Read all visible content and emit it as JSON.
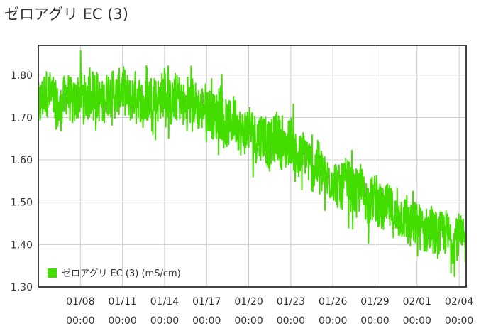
{
  "page_title": "ゼロアグリ EC (3)",
  "colors": {
    "series": "#44dd00",
    "grid": "#cccccc",
    "frame": "#444444",
    "text": "#333333"
  },
  "chart_data": {
    "type": "line",
    "title": "ゼロアグリ EC (3)",
    "unit": "mS/cm",
    "ylim": [
      1.3,
      1.87
    ],
    "y_ticks": [
      "1.30",
      "1.40",
      "1.50",
      "1.60",
      "1.70",
      "1.80"
    ],
    "x_ticks": [
      {
        "date": "01/08",
        "time": "00:00"
      },
      {
        "date": "01/11",
        "time": "00:00"
      },
      {
        "date": "01/14",
        "time": "00:00"
      },
      {
        "date": "01/17",
        "time": "00:00"
      },
      {
        "date": "01/20",
        "time": "00:00"
      },
      {
        "date": "01/23",
        "time": "00:00"
      },
      {
        "date": "01/26",
        "time": "00:00"
      },
      {
        "date": "01/29",
        "time": "00:00"
      },
      {
        "date": "02/01",
        "time": "00:00"
      },
      {
        "date": "02/04",
        "time": "00:00"
      }
    ],
    "x_range": [
      "01/05 00:00",
      "02/04 12:00"
    ],
    "grid": true,
    "legend": {
      "placement": "bottom-left",
      "label": "ゼロアグリ EC (3) (mS/cm)"
    },
    "series": [
      {
        "name": "ゼロアグリ EC (3) (mS/cm)",
        "sampling": "every 12 hours, dense noise between points",
        "x": [
          "01/05 00:00",
          "01/05 12:00",
          "01/06 00:00",
          "01/06 12:00",
          "01/07 00:00",
          "01/07 12:00",
          "01/08 00:00",
          "01/08 12:00",
          "01/09 00:00",
          "01/09 12:00",
          "01/10 00:00",
          "01/10 12:00",
          "01/11 00:00",
          "01/11 12:00",
          "01/12 00:00",
          "01/12 12:00",
          "01/13 00:00",
          "01/13 12:00",
          "01/14 00:00",
          "01/14 12:00",
          "01/15 00:00",
          "01/15 12:00",
          "01/16 00:00",
          "01/16 12:00",
          "01/17 00:00",
          "01/17 12:00",
          "01/18 00:00",
          "01/18 12:00",
          "01/19 00:00",
          "01/19 12:00",
          "01/20 00:00",
          "01/20 12:00",
          "01/21 00:00",
          "01/21 12:00",
          "01/22 00:00",
          "01/22 12:00",
          "01/23 00:00",
          "01/23 12:00",
          "01/24 00:00",
          "01/24 12:00",
          "01/25 00:00",
          "01/25 12:00",
          "01/26 00:00",
          "01/26 12:00",
          "01/27 00:00",
          "01/27 12:00",
          "01/28 00:00",
          "01/28 12:00",
          "01/29 00:00",
          "01/29 12:00",
          "01/30 00:00",
          "01/30 12:00",
          "01/31 00:00",
          "01/31 12:00",
          "02/01 00:00",
          "02/01 12:00",
          "02/02 00:00",
          "02/02 12:00",
          "02/03 00:00",
          "02/03 12:00",
          "02/04 00:00",
          "02/04 12:00"
        ],
        "y": [
          1.72,
          1.76,
          1.75,
          1.71,
          1.76,
          1.73,
          1.76,
          1.74,
          1.77,
          1.73,
          1.76,
          1.75,
          1.77,
          1.74,
          1.76,
          1.73,
          1.75,
          1.74,
          1.76,
          1.73,
          1.75,
          1.72,
          1.74,
          1.72,
          1.73,
          1.7,
          1.71,
          1.68,
          1.7,
          1.66,
          1.68,
          1.65,
          1.66,
          1.63,
          1.66,
          1.62,
          1.65,
          1.6,
          1.62,
          1.58,
          1.59,
          1.55,
          1.56,
          1.53,
          1.55,
          1.52,
          1.53,
          1.5,
          1.51,
          1.48,
          1.49,
          1.46,
          1.47,
          1.44,
          1.45,
          1.43,
          1.44,
          1.42,
          1.43,
          1.41,
          1.42,
          1.4
        ],
        "y_min": [
          1.61,
          1.66,
          1.65,
          1.61,
          1.66,
          1.63,
          1.66,
          1.65,
          1.67,
          1.63,
          1.66,
          1.65,
          1.67,
          1.64,
          1.66,
          1.63,
          1.65,
          1.64,
          1.66,
          1.63,
          1.65,
          1.62,
          1.64,
          1.62,
          1.63,
          1.6,
          1.59,
          1.58,
          1.59,
          1.56,
          1.57,
          1.54,
          1.55,
          1.52,
          1.55,
          1.52,
          1.54,
          1.5,
          1.52,
          1.47,
          1.48,
          1.45,
          1.46,
          1.43,
          1.44,
          1.42,
          1.43,
          1.4,
          1.41,
          1.38,
          1.39,
          1.36,
          1.37,
          1.34,
          1.35,
          1.33,
          1.34,
          1.32,
          1.33,
          1.31,
          1.32,
          1.31
        ],
        "y_max": [
          1.83,
          1.86,
          1.86,
          1.81,
          1.86,
          1.83,
          1.86,
          1.84,
          1.87,
          1.83,
          1.86,
          1.85,
          1.87,
          1.84,
          1.86,
          1.83,
          1.85,
          1.84,
          1.86,
          1.83,
          1.85,
          1.82,
          1.84,
          1.82,
          1.83,
          1.8,
          1.81,
          1.78,
          1.8,
          1.76,
          1.78,
          1.75,
          1.76,
          1.73,
          1.76,
          1.72,
          1.75,
          1.7,
          1.72,
          1.68,
          1.69,
          1.65,
          1.66,
          1.63,
          1.65,
          1.62,
          1.63,
          1.6,
          1.61,
          1.58,
          1.59,
          1.56,
          1.57,
          1.54,
          1.55,
          1.53,
          1.54,
          1.52,
          1.53,
          1.51,
          1.52,
          1.49
        ]
      }
    ]
  }
}
